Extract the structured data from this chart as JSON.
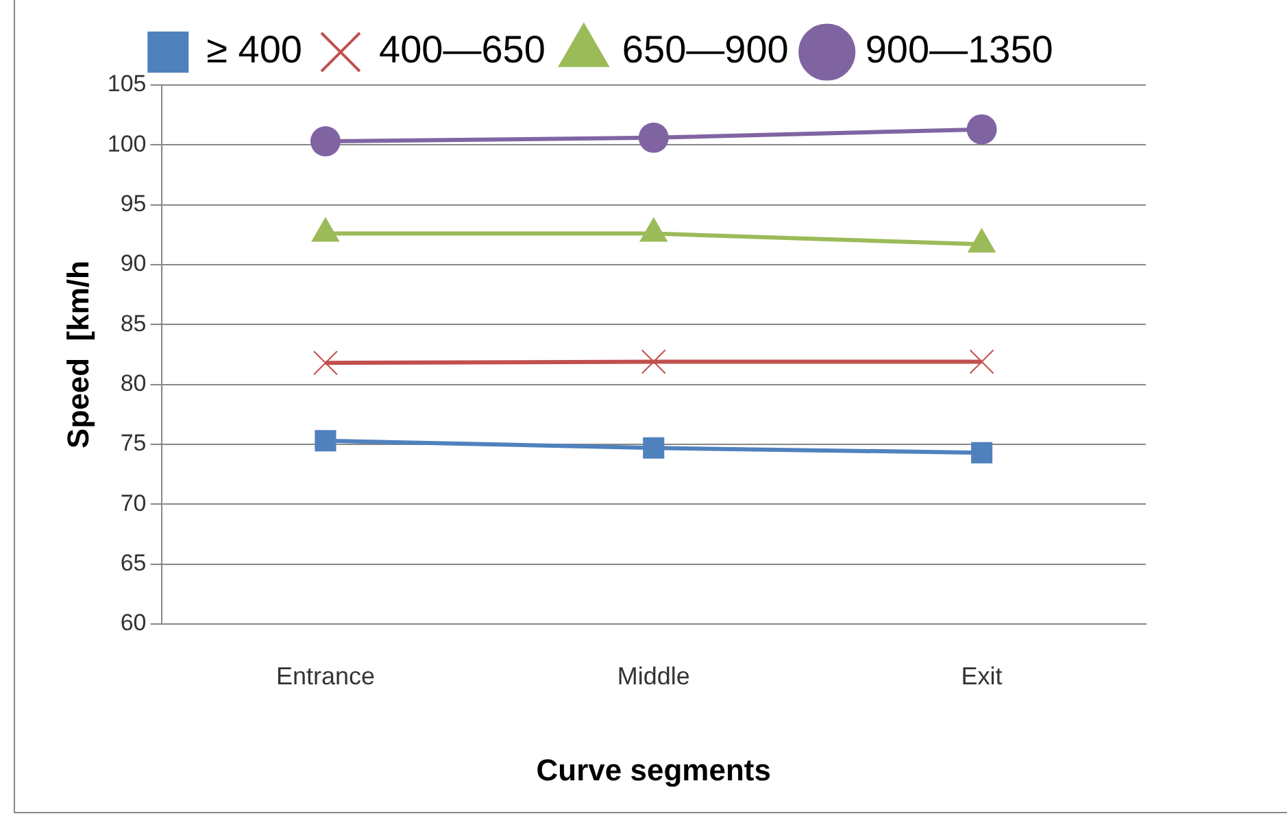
{
  "chart_data": {
    "type": "line",
    "xlabel": "Curve segments",
    "ylabel": "Speed  [km/h",
    "categories": [
      "Entrance",
      "Middle",
      "Exit"
    ],
    "series": [
      {
        "name": "≥ 400",
        "color": "#4f81bd",
        "marker": "square",
        "values": [
          75.3,
          74.7,
          74.3
        ]
      },
      {
        "name": "400—650",
        "color": "#c0504d",
        "marker": "cross",
        "values": [
          81.8,
          81.9,
          81.9
        ]
      },
      {
        "name": "650—900",
        "color": "#9bbb59",
        "marker": "triangle",
        "values": [
          92.6,
          92.6,
          91.7
        ]
      },
      {
        "name": "900—1350",
        "color": "#8064a2",
        "marker": "circle",
        "values": [
          100.3,
          100.6,
          101.3
        ]
      }
    ],
    "ylim": [
      60,
      105
    ],
    "yticks": [
      60,
      65,
      70,
      75,
      80,
      85,
      90,
      95,
      100,
      105
    ],
    "grid": "y",
    "legend": "top"
  }
}
